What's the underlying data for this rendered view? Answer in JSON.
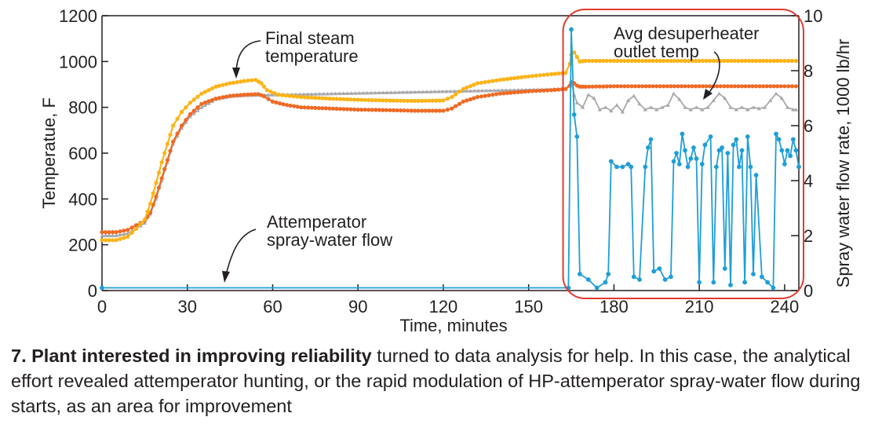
{
  "chart_data": {
    "type": "line",
    "xlabel": "Time, minutes",
    "ylabel": "Temperatue, F",
    "y2label": "Spray water flow rate, 1000 lb/hr",
    "xlim": [
      0,
      245
    ],
    "ylim": [
      0,
      1200
    ],
    "y2lim": [
      0,
      10
    ],
    "xticks": [
      0,
      30,
      60,
      90,
      120,
      150,
      180,
      210,
      240
    ],
    "yticks": [
      0,
      200,
      400,
      600,
      800,
      1000,
      1200
    ],
    "y2ticks": [
      0,
      2,
      4,
      6,
      8,
      10
    ],
    "highlight": {
      "x_range": [
        161,
        245
      ],
      "color": "#e03a2f"
    },
    "annotations": {
      "final_steam": "Final steam\ntemperature",
      "desuperheater": "Avg desuperheater\noutlet temp",
      "spray": "Attemperator\nspray-water flow"
    },
    "series": [
      {
        "key": "final_steam",
        "axis": "left",
        "color": "#fbb316",
        "points": [
          [
            0,
            220
          ],
          [
            5,
            220
          ],
          [
            9,
            235
          ],
          [
            12,
            270
          ],
          [
            15,
            310
          ],
          [
            17,
            380
          ],
          [
            19,
            470
          ],
          [
            21,
            560
          ],
          [
            23,
            640
          ],
          [
            25,
            720
          ],
          [
            28,
            780
          ],
          [
            31,
            820
          ],
          [
            35,
            860
          ],
          [
            40,
            890
          ],
          [
            45,
            905
          ],
          [
            50,
            915
          ],
          [
            54,
            920
          ],
          [
            56,
            905
          ],
          [
            58,
            875
          ],
          [
            62,
            855
          ],
          [
            70,
            845
          ],
          [
            80,
            838
          ],
          [
            90,
            833
          ],
          [
            100,
            830
          ],
          [
            110,
            828
          ],
          [
            120,
            830
          ],
          [
            123,
            845
          ],
          [
            127,
            880
          ],
          [
            132,
            905
          ],
          [
            140,
            920
          ],
          [
            150,
            935
          ],
          [
            158,
            945
          ],
          [
            163,
            950
          ],
          [
            164.5,
            990
          ],
          [
            165,
            1030
          ],
          [
            166,
            1040
          ],
          [
            167,
            1020
          ],
          [
            168,
            1000
          ],
          [
            170,
            1003
          ],
          [
            180,
            1003
          ],
          [
            190,
            1003
          ],
          [
            200,
            1003
          ],
          [
            210,
            1003
          ],
          [
            220,
            1003
          ],
          [
            230,
            1003
          ],
          [
            240,
            1003
          ],
          [
            244,
            1003
          ]
        ]
      },
      {
        "key": "steam_alt",
        "axis": "left",
        "color": "#ee6a24",
        "points": [
          [
            0,
            255
          ],
          [
            5,
            255
          ],
          [
            9,
            265
          ],
          [
            12,
            285
          ],
          [
            15,
            305
          ],
          [
            17,
            340
          ],
          [
            19,
            410
          ],
          [
            21,
            490
          ],
          [
            23,
            570
          ],
          [
            25,
            650
          ],
          [
            28,
            720
          ],
          [
            31,
            770
          ],
          [
            35,
            815
          ],
          [
            40,
            838
          ],
          [
            45,
            850
          ],
          [
            50,
            855
          ],
          [
            55,
            858
          ],
          [
            57,
            848
          ],
          [
            60,
            825
          ],
          [
            65,
            810
          ],
          [
            70,
            800
          ],
          [
            80,
            795
          ],
          [
            90,
            790
          ],
          [
            100,
            788
          ],
          [
            110,
            785
          ],
          [
            120,
            785
          ],
          [
            123,
            795
          ],
          [
            127,
            825
          ],
          [
            132,
            845
          ],
          [
            140,
            860
          ],
          [
            150,
            870
          ],
          [
            158,
            875
          ],
          [
            163,
            880
          ],
          [
            164.5,
            895
          ],
          [
            165,
            910
          ],
          [
            166,
            905
          ],
          [
            167,
            895
          ],
          [
            168,
            890
          ],
          [
            170,
            890
          ],
          [
            180,
            892
          ],
          [
            190,
            892
          ],
          [
            200,
            892
          ],
          [
            210,
            892
          ],
          [
            220,
            892
          ],
          [
            230,
            892
          ],
          [
            240,
            892
          ],
          [
            244,
            892
          ]
        ]
      },
      {
        "key": "desuperheater",
        "axis": "left",
        "color": "#a7a9ac",
        "points": [
          [
            0,
            240
          ],
          [
            5,
            240
          ],
          [
            9,
            250
          ],
          [
            12,
            270
          ],
          [
            15,
            295
          ],
          [
            17,
            335
          ],
          [
            19,
            400
          ],
          [
            21,
            480
          ],
          [
            23,
            560
          ],
          [
            25,
            640
          ],
          [
            28,
            710
          ],
          [
            31,
            760
          ],
          [
            35,
            800
          ],
          [
            40,
            835
          ],
          [
            45,
            848
          ],
          [
            50,
            852
          ],
          [
            163,
            880
          ],
          [
            165,
            910
          ],
          [
            166,
            855
          ],
          [
            167,
            820
          ],
          [
            169,
            800
          ],
          [
            171,
            855
          ],
          [
            173,
            840
          ],
          [
            175,
            790
          ],
          [
            177,
            800
          ],
          [
            179,
            785
          ],
          [
            181,
            810
          ],
          [
            183,
            780
          ],
          [
            185,
            830
          ],
          [
            187,
            850
          ],
          [
            189,
            815
          ],
          [
            191,
            790
          ],
          [
            193,
            800
          ],
          [
            195,
            790
          ],
          [
            197,
            800
          ],
          [
            199,
            810
          ],
          [
            201,
            860
          ],
          [
            203,
            835
          ],
          [
            205,
            800
          ],
          [
            207,
            790
          ],
          [
            209,
            800
          ],
          [
            211,
            790
          ],
          [
            213,
            800
          ],
          [
            215,
            830
          ],
          [
            217,
            860
          ],
          [
            219,
            840
          ],
          [
            221,
            800
          ],
          [
            223,
            790
          ],
          [
            225,
            800
          ],
          [
            227,
            790
          ],
          [
            229,
            800
          ],
          [
            231,
            795
          ],
          [
            233,
            800
          ],
          [
            235,
            830
          ],
          [
            237,
            860
          ],
          [
            239,
            840
          ],
          [
            241,
            800
          ],
          [
            243,
            790
          ],
          [
            244,
            790
          ]
        ]
      },
      {
        "key": "spray",
        "axis": "right",
        "color": "#1e9ed8",
        "points": [
          [
            0,
            0.1
          ],
          [
            164,
            0.1
          ],
          [
            165,
            9.5
          ],
          [
            166,
            6.4
          ],
          [
            167,
            5.6
          ],
          [
            168,
            0.6
          ],
          [
            171,
            0.4
          ],
          [
            174,
            0.1
          ],
          [
            177,
            0.3
          ],
          [
            178,
            0.6
          ],
          [
            179,
            4.7
          ],
          [
            181,
            4.5
          ],
          [
            183,
            4.5
          ],
          [
            185,
            4.6
          ],
          [
            186,
            4.5
          ],
          [
            187,
            0.5
          ],
          [
            189,
            0.4
          ],
          [
            191,
            4.5
          ],
          [
            192,
            5.2
          ],
          [
            193,
            5.5
          ],
          [
            194,
            0.7
          ],
          [
            196,
            0.8
          ],
          [
            198,
            0.4
          ],
          [
            200,
            0.5
          ],
          [
            201,
            4.7
          ],
          [
            202,
            5.0
          ],
          [
            203,
            4.6
          ],
          [
            204,
            5.7
          ],
          [
            205,
            5.1
          ],
          [
            206,
            4.5
          ],
          [
            207,
            4.8
          ],
          [
            208,
            5.2
          ],
          [
            209,
            4.8
          ],
          [
            210,
            0.3
          ],
          [
            211,
            4.6
          ],
          [
            212,
            5.3
          ],
          [
            214,
            5.6
          ],
          [
            215,
            0.3
          ],
          [
            216,
            4.5
          ],
          [
            217,
            5.1
          ],
          [
            218,
            5.2
          ],
          [
            219,
            0.8
          ],
          [
            220,
            5.0
          ],
          [
            221,
            0.2
          ],
          [
            222,
            5.3
          ],
          [
            223,
            5.5
          ],
          [
            224,
            4.5
          ],
          [
            225,
            5.1
          ],
          [
            226,
            0.3
          ],
          [
            227,
            5.6
          ],
          [
            228,
            4.5
          ],
          [
            229,
            0.6
          ],
          [
            230,
            4.2
          ],
          [
            232,
            0.5
          ],
          [
            234,
            0.3
          ],
          [
            236,
            0.1
          ],
          [
            237,
            5.7
          ],
          [
            238,
            5.5
          ],
          [
            239,
            5.1
          ],
          [
            240,
            4.6
          ],
          [
            241,
            5.1
          ],
          [
            242,
            4.9
          ],
          [
            243,
            5.5
          ],
          [
            244,
            5.1
          ],
          [
            245,
            4.5
          ]
        ]
      }
    ]
  },
  "caption": {
    "bold": "7. Plant interested in improving reliability",
    "text": " turned to data analysis for help. In this case, the analytical effort revealed attemperator hunting, or the rapid modulation of HP-attemperator spray-water flow during starts, as an area for improvement"
  }
}
